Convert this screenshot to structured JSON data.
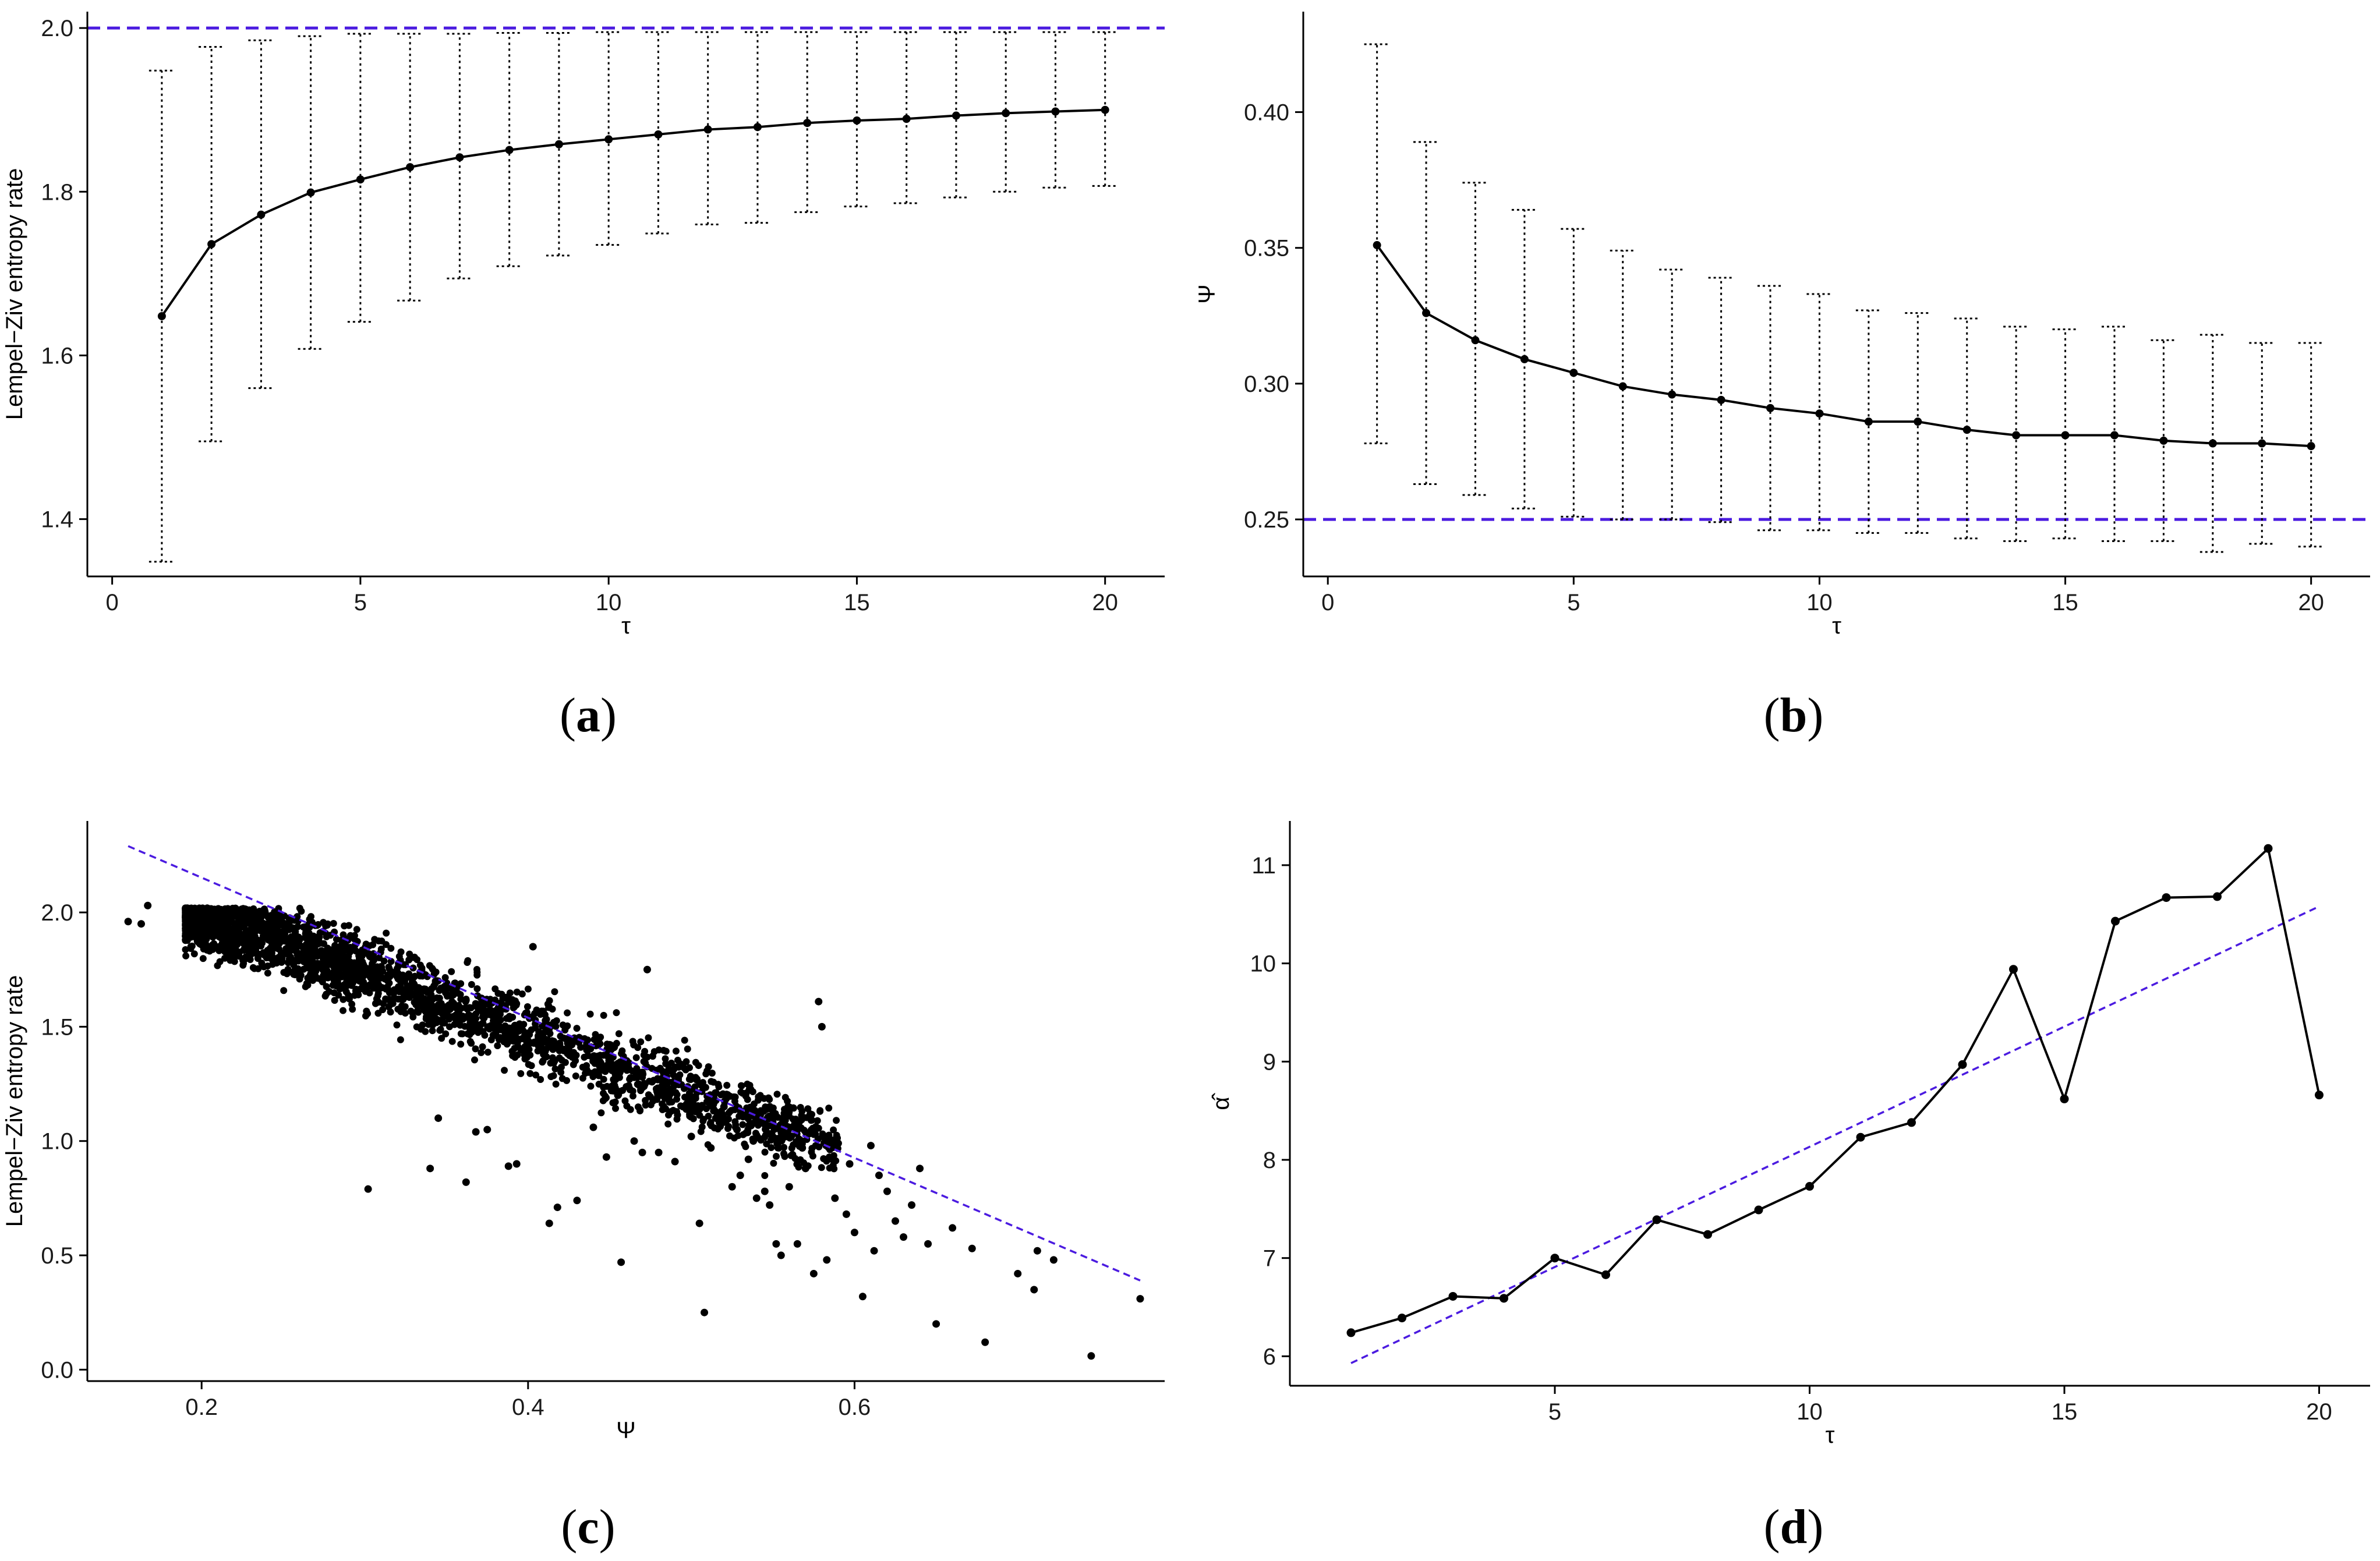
{
  "figure": {
    "panel_labels": [
      {
        "open": "(",
        "letter": "a",
        "close": ")"
      },
      {
        "open": "(",
        "letter": "b",
        "close": ")"
      },
      {
        "open": "(",
        "letter": "c",
        "close": ")"
      },
      {
        "open": "(",
        "letter": "d",
        "close": ")"
      }
    ],
    "colors": {
      "reference": "#4B1BE0",
      "series": "#000000",
      "axis": "#000000",
      "errorbar": "#000000"
    }
  },
  "chart_data": [
    {
      "id": "a",
      "type": "line",
      "title": "",
      "xlabel": "τ",
      "ylabel": "Lempel−Ziv entropy rate",
      "xlim": [
        -0.5,
        21.2
      ],
      "ylim": [
        1.33,
        2.02
      ],
      "xticks": [
        0,
        5,
        10,
        15,
        20
      ],
      "xtick_labels": [
        "0",
        "5",
        "10",
        "15",
        "20"
      ],
      "yticks": [
        1.4,
        1.6,
        1.8,
        2.0
      ],
      "ytick_labels": [
        "1.4",
        "1.6",
        "1.8",
        "2.0"
      ],
      "x": [
        1,
        2,
        3,
        4,
        5,
        6,
        7,
        8,
        9,
        10,
        11,
        12,
        13,
        14,
        15,
        16,
        17,
        18,
        19,
        20
      ],
      "y": [
        1.648,
        1.736,
        1.772,
        1.799,
        1.815,
        1.83,
        1.842,
        1.851,
        1.858,
        1.864,
        1.87,
        1.876,
        1.879,
        1.884,
        1.887,
        1.889,
        1.893,
        1.896,
        1.898,
        1.9
      ],
      "err_low": [
        1.348,
        1.495,
        1.56,
        1.608,
        1.641,
        1.667,
        1.694,
        1.709,
        1.722,
        1.735,
        1.749,
        1.76,
        1.762,
        1.775,
        1.782,
        1.786,
        1.793,
        1.8,
        1.805,
        1.807
      ],
      "err_high": [
        1.948,
        1.977,
        1.985,
        1.99,
        1.993,
        1.993,
        1.993,
        1.994,
        1.994,
        1.995,
        1.995,
        1.995,
        1.995,
        1.995,
        1.995,
        1.995,
        1.995,
        1.995,
        1.995,
        1.995
      ],
      "reference_line": {
        "y": 2.0,
        "style": "dashed"
      }
    },
    {
      "id": "b",
      "type": "line",
      "title": "",
      "xlabel": "τ",
      "ylabel": "Ψ",
      "xlim": [
        -0.5,
        21.2
      ],
      "ylim": [
        0.229,
        0.437
      ],
      "xticks": [
        0,
        5,
        10,
        15,
        20
      ],
      "xtick_labels": [
        "0",
        "5",
        "10",
        "15",
        "20"
      ],
      "yticks": [
        0.25,
        0.3,
        0.35,
        0.4
      ],
      "ytick_labels": [
        "0.25",
        "0.30",
        "0.35",
        "0.40"
      ],
      "x": [
        1,
        2,
        3,
        4,
        5,
        6,
        7,
        8,
        9,
        10,
        11,
        12,
        13,
        14,
        15,
        16,
        17,
        18,
        19,
        20
      ],
      "y": [
        0.351,
        0.326,
        0.316,
        0.309,
        0.304,
        0.299,
        0.296,
        0.294,
        0.291,
        0.289,
        0.286,
        0.286,
        0.283,
        0.281,
        0.281,
        0.281,
        0.279,
        0.278,
        0.278,
        0.277
      ],
      "err_low": [
        0.278,
        0.263,
        0.259,
        0.254,
        0.251,
        0.25,
        0.25,
        0.249,
        0.246,
        0.246,
        0.245,
        0.245,
        0.243,
        0.242,
        0.243,
        0.242,
        0.242,
        0.238,
        0.241,
        0.24
      ],
      "err_high": [
        0.425,
        0.389,
        0.374,
        0.364,
        0.357,
        0.349,
        0.342,
        0.339,
        0.336,
        0.333,
        0.327,
        0.326,
        0.324,
        0.321,
        0.32,
        0.321,
        0.316,
        0.318,
        0.315,
        0.315
      ],
      "reference_line": {
        "y": 0.25,
        "style": "dashed"
      }
    },
    {
      "id": "c",
      "type": "scatter",
      "title": "",
      "xlabel": "Ψ",
      "ylabel": "Lempel−Ziv entropy rate",
      "xlim": [
        0.13,
        0.79
      ],
      "ylim": [
        -0.05,
        2.4
      ],
      "xticks": [
        0.2,
        0.4,
        0.6
      ],
      "xtick_labels": [
        "0.2",
        "0.4",
        "0.6"
      ],
      "yticks": [
        0.0,
        0.5,
        1.0,
        1.5,
        2.0
      ],
      "ytick_labels": [
        "0.0",
        "0.5",
        "1.0",
        "1.5",
        "2.0"
      ],
      "fit_line": {
        "x": [
          0.155,
          0.775
        ],
        "y": [
          2.29,
          0.39
        ],
        "style": "dashed"
      },
      "points": [
        [
          0.155,
          1.96
        ],
        [
          0.163,
          1.95
        ],
        [
          0.167,
          2.03
        ],
        [
          0.302,
          0.79
        ],
        [
          0.34,
          0.88
        ],
        [
          0.345,
          1.1
        ],
        [
          0.362,
          0.82
        ],
        [
          0.368,
          1.04
        ],
        [
          0.375,
          1.05
        ],
        [
          0.388,
          0.89
        ],
        [
          0.393,
          0.9
        ],
        [
          0.403,
          1.85
        ],
        [
          0.413,
          0.64
        ],
        [
          0.418,
          0.71
        ],
        [
          0.43,
          0.74
        ],
        [
          0.44,
          1.06
        ],
        [
          0.448,
          0.93
        ],
        [
          0.455,
          1.2
        ],
        [
          0.457,
          0.47
        ],
        [
          0.465,
          1.0
        ],
        [
          0.47,
          0.95
        ],
        [
          0.473,
          1.75
        ],
        [
          0.48,
          0.95
        ],
        [
          0.49,
          0.91
        ],
        [
          0.5,
          1.02
        ],
        [
          0.505,
          0.64
        ],
        [
          0.508,
          0.25
        ],
        [
          0.512,
          0.97
        ],
        [
          0.52,
          1.15
        ],
        [
          0.525,
          0.8
        ],
        [
          0.53,
          0.85
        ],
        [
          0.535,
          0.92
        ],
        [
          0.54,
          0.75
        ],
        [
          0.545,
          0.78
        ],
        [
          0.548,
          0.72
        ],
        [
          0.552,
          0.55
        ],
        [
          0.555,
          0.5
        ],
        [
          0.56,
          0.8
        ],
        [
          0.565,
          0.55
        ],
        [
          0.57,
          0.88
        ],
        [
          0.575,
          0.42
        ],
        [
          0.578,
          1.61
        ],
        [
          0.58,
          1.5
        ],
        [
          0.583,
          0.48
        ],
        [
          0.588,
          0.75
        ],
        [
          0.595,
          0.68
        ],
        [
          0.6,
          0.6
        ],
        [
          0.605,
          0.32
        ],
        [
          0.612,
          0.52
        ],
        [
          0.62,
          0.78
        ],
        [
          0.625,
          0.65
        ],
        [
          0.63,
          0.58
        ],
        [
          0.635,
          0.72
        ],
        [
          0.64,
          0.88
        ],
        [
          0.645,
          0.55
        ],
        [
          0.65,
          0.2
        ],
        [
          0.66,
          0.62
        ],
        [
          0.672,
          0.53
        ],
        [
          0.68,
          0.12
        ],
        [
          0.7,
          0.42
        ],
        [
          0.71,
          0.35
        ],
        [
          0.712,
          0.52
        ],
        [
          0.722,
          0.48
        ],
        [
          0.745,
          0.06
        ],
        [
          0.775,
          0.31
        ],
        [
          0.59,
          0.99
        ],
        [
          0.597,
          0.9
        ],
        [
          0.61,
          0.98
        ],
        [
          0.615,
          0.85
        ],
        [
          0.47,
          1.3
        ],
        [
          0.485,
          1.25
        ],
        [
          0.495,
          1.15
        ],
        [
          0.515,
          1.1
        ],
        [
          0.528,
          1.05
        ],
        [
          0.538,
          1.0
        ],
        [
          0.543,
          1.08
        ],
        [
          0.558,
          1.02
        ],
        [
          0.568,
          0.97
        ],
        [
          0.562,
          0.94
        ],
        [
          0.553,
          0.99
        ]
      ],
      "cloud": {
        "n": 2600,
        "x_range": [
          0.19,
          0.59
        ],
        "trend": {
          "intercept": 2.53,
          "slope": -2.64
        },
        "spread": 0.08,
        "cap": 2.02
      }
    },
    {
      "id": "d",
      "type": "line",
      "title": "",
      "xlabel": "τ",
      "ylabel": "α̂",
      "xlim": [
        -0.2,
        21.0
      ],
      "ylim": [
        5.7,
        11.45
      ],
      "xticks": [
        5,
        10,
        15,
        20
      ],
      "xtick_labels": [
        "5",
        "10",
        "15",
        "20"
      ],
      "yticks": [
        6,
        7,
        8,
        9,
        10,
        11
      ],
      "ytick_labels": [
        "6",
        "7",
        "8",
        "9",
        "10",
        "11"
      ],
      "x": [
        1,
        2,
        3,
        4,
        5,
        6,
        7,
        8,
        9,
        10,
        11,
        12,
        13,
        14,
        15,
        16,
        17,
        18,
        19,
        20
      ],
      "y": [
        6.24,
        6.39,
        6.61,
        6.59,
        7.0,
        6.83,
        7.39,
        7.24,
        7.49,
        7.73,
        8.23,
        8.38,
        8.97,
        9.94,
        8.62,
        10.43,
        10.67,
        10.68,
        11.17,
        8.66
      ],
      "fit_line": {
        "x": [
          1,
          20
        ],
        "y": [
          5.93,
          10.58
        ],
        "style": "dashed"
      }
    }
  ]
}
